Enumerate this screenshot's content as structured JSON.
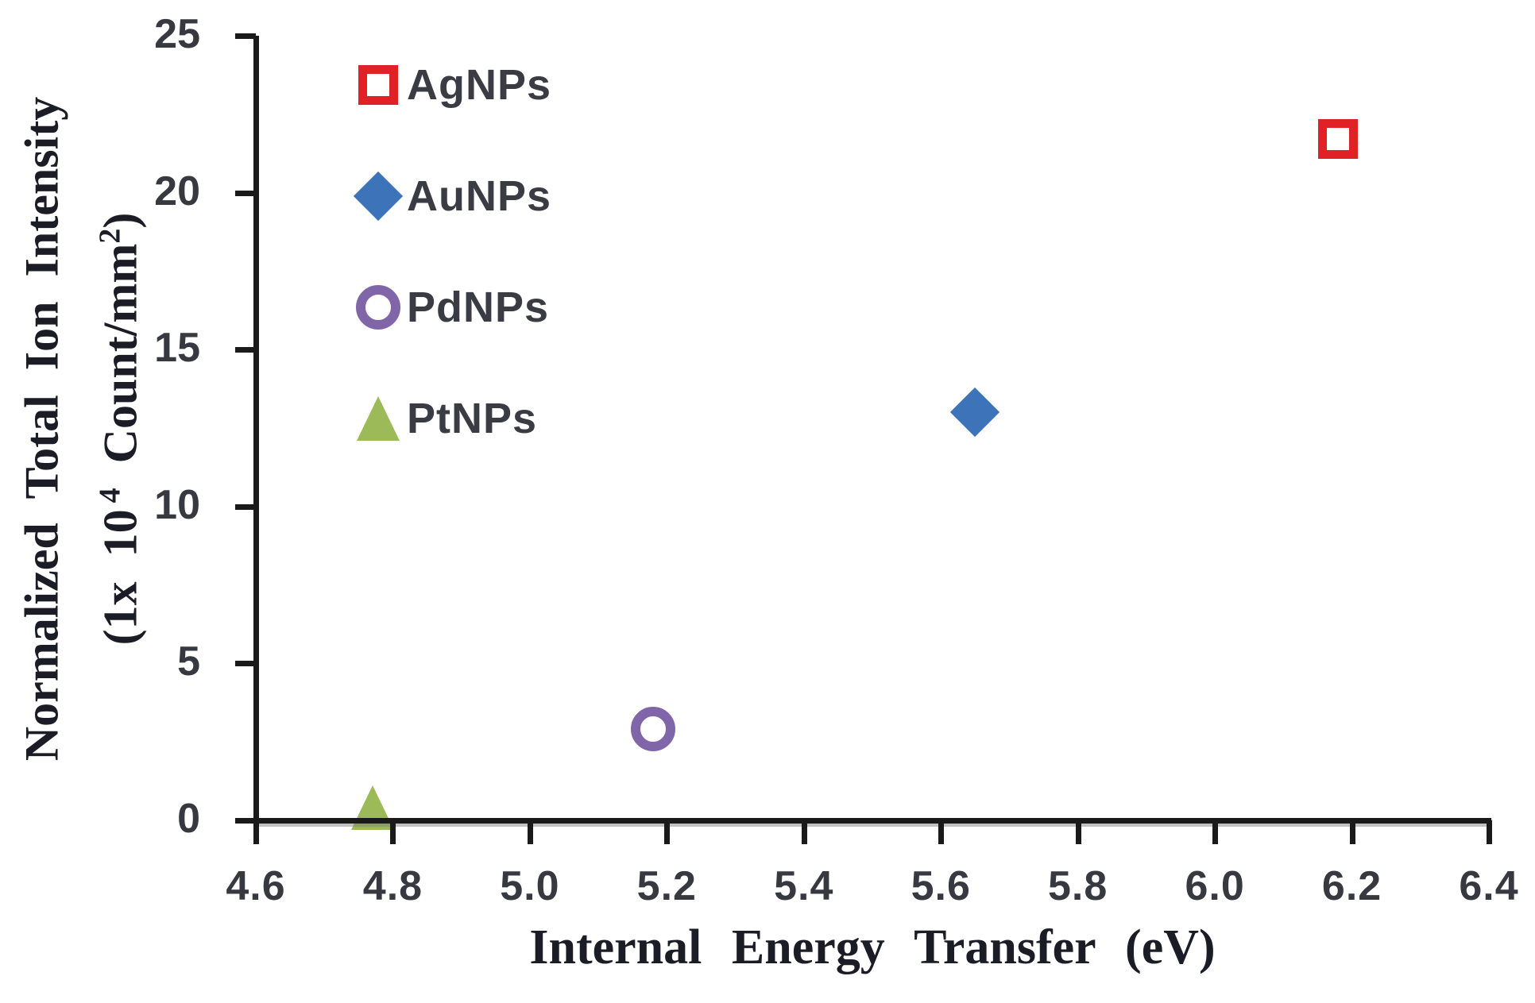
{
  "chart_data": {
    "type": "scatter",
    "title": "",
    "xlabel": "Internal Energy Transfer (eV)",
    "ylabel_line1": "Normalized Total Ion Intensity",
    "ylabel_line2_parts": {
      "open": "(1x 10",
      "sup1": "4",
      "mid": "Count/mm",
      "sup2": "2",
      "close": ")"
    },
    "xlim": [
      4.6,
      6.4
    ],
    "ylim": [
      0,
      25
    ],
    "x_ticks": [
      "4.6",
      "4.8",
      "5.0",
      "5.2",
      "5.4",
      "5.6",
      "5.8",
      "6.0",
      "6.2",
      "6.4"
    ],
    "y_ticks": [
      "0",
      "5",
      "10",
      "15",
      "20",
      "25"
    ],
    "grid": false,
    "legend_position": "upper-left-inside",
    "axis_color": "#1a1a1a",
    "tick_label_color": "#383840",
    "series": [
      {
        "name": "AgNPs",
        "marker": "square-open",
        "color": "#e02125",
        "points": [
          {
            "x": 6.18,
            "y": 21.7
          }
        ]
      },
      {
        "name": "AuNPs",
        "marker": "diamond-filled",
        "color": "#3d74b9",
        "points": [
          {
            "x": 5.65,
            "y": 13.0
          }
        ]
      },
      {
        "name": "PdNPs",
        "marker": "circle-open",
        "color": "#8066a9",
        "points": [
          {
            "x": 5.18,
            "y": 2.9
          }
        ]
      },
      {
        "name": "PtNPs",
        "marker": "triangle-filled",
        "color": "#9cba57",
        "points": [
          {
            "x": 4.77,
            "y": 0.4
          }
        ]
      }
    ]
  }
}
